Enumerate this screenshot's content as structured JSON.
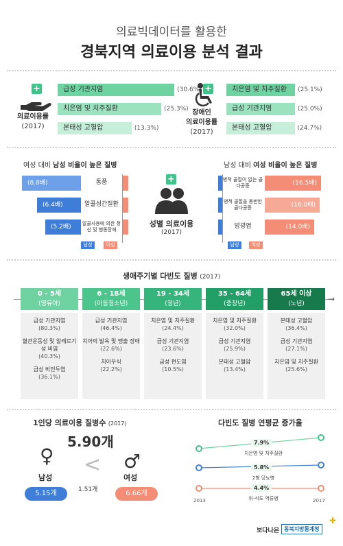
{
  "header": {
    "subtitle": "의료빅데이터를 활용한",
    "title": "경북지역 의료이용 분석 결과"
  },
  "usage": {
    "left_caption_1": "의료이용률",
    "left_caption_2": "(2017)",
    "right_caption_1": "장애인",
    "right_caption_2": "의료이용률",
    "right_caption_3": "(2017)",
    "left_items": [
      {
        "label": "급성 기관지염",
        "pct": "(30.6%)",
        "value": 30.6
      },
      {
        "label": "치은염 및 치주질환",
        "pct": "(25.3%)",
        "value": 25.3
      },
      {
        "label": "본태성 고혈압",
        "pct": "(13.3%)",
        "value": 13.3
      }
    ],
    "right_items": [
      {
        "label": "치은염 및 치주질환",
        "pct": "(25.1%)",
        "value": 25.1
      },
      {
        "label": "급성 기관지염",
        "pct": "(25.0%)",
        "value": 25.0
      },
      {
        "label": "본태성 고혈압",
        "pct": "(24.7%)",
        "value": 24.7
      }
    ]
  },
  "gender": {
    "left_title_pre": "여성 대비",
    "left_title_bold": "남성 비율이 높은 질병",
    "right_title_pre": "남성 대비",
    "right_title_bold": "여성 비율이 높은 질병",
    "center_1": "성별 의료이용",
    "center_2": "(2017)",
    "male_legend": "남성",
    "female_legend": "여성",
    "male_high": [
      {
        "ratio": "(8.8배)",
        "disease": "통풍"
      },
      {
        "ratio": "(6.4배)",
        "disease": "알콜성간질환"
      },
      {
        "ratio": "(5.2배)",
        "disease": "알콜사용에 의한 정신 및 행동장애"
      }
    ],
    "female_high": [
      {
        "ratio": "(16.5배)",
        "disease": "병적 골절이 없는 골다공증"
      },
      {
        "ratio": "(16.0배)",
        "disease": "병적 골절을 동반한 골다공증"
      },
      {
        "ratio": "(14.0배)",
        "disease": "방광염"
      }
    ]
  },
  "lifecycle": {
    "title": "생애주기별 다빈도 질병",
    "year": "(2017)",
    "groups": [
      {
        "age": "0 - 5세",
        "name": "(영유아)",
        "color": "#6fd3a1",
        "items": [
          {
            "d": "급성 기관지염",
            "p": "(80.3%)"
          },
          {
            "d": "혈관운동성 및 알레르기성 비염",
            "p": "(40.3%)"
          },
          {
            "d": "급성 비인두염",
            "p": "(36.1%)"
          }
        ]
      },
      {
        "age": "6 - 18세",
        "name": "(아동청소년)",
        "color": "#4cc58c",
        "items": [
          {
            "d": "급성 기관지염",
            "p": "(46.4%)"
          },
          {
            "d": "치아의 발육 및 맹출 장애",
            "p": "(22.6%)"
          },
          {
            "d": "치아우식",
            "p": "(22.2%)"
          }
        ]
      },
      {
        "age": "19 - 34세",
        "name": "(청년)",
        "color": "#35b57b",
        "items": [
          {
            "d": "치은염 및 치주질환",
            "p": "(24.4%)"
          },
          {
            "d": "급성 기관지염",
            "p": "(23.6%)"
          },
          {
            "d": "급성 편도염",
            "p": "(10.5%)"
          }
        ]
      },
      {
        "age": "35 - 64세",
        "name": "(중장년)",
        "color": "#229f67",
        "items": [
          {
            "d": "치은염 및 치주질환",
            "p": "(32.0%)"
          },
          {
            "d": "급성 기관지염",
            "p": "(25.9%)"
          },
          {
            "d": "본태성 고혈압",
            "p": "(13.4%)"
          }
        ]
      },
      {
        "age": "65세 이상",
        "name": "(노년)",
        "color": "#177a4d",
        "items": [
          {
            "d": "본태성 고혈압",
            "p": "(36.4%)"
          },
          {
            "d": "급성 기관지염",
            "p": "(27.1%)"
          },
          {
            "d": "치은염 및 치주질환",
            "p": "(25.6%)"
          }
        ]
      }
    ]
  },
  "per_person": {
    "title": "1인당 의료이용 질병수",
    "year": "(2017)",
    "total": "5.90개",
    "male_label": "남성",
    "male_value": "5.15개",
    "female_label": "여성",
    "female_value": "6.66개",
    "diff": "1.51개",
    "less_than": "<",
    "male_symbol": "♀",
    "female_symbol": "♂",
    "male_color": "#3f7ed8",
    "female_color": "#f48d75"
  },
  "growth": {
    "title": "다빈도 질병 연평균 증가율",
    "year_start": "2013",
    "year_end": "2017",
    "lines": [
      {
        "rate": "7.9%",
        "disease": "치은염 및 치주질환",
        "color": "#3ec38a"
      },
      {
        "rate": "5.8%",
        "disease": "2형 당뇨병",
        "color": "#3f7ed8"
      },
      {
        "rate": "4.4%",
        "disease": "위-식도 역류병",
        "color": "#f48d75"
      }
    ]
  },
  "footer": {
    "brand": "보다나은",
    "org": "동북지방통계청"
  }
}
